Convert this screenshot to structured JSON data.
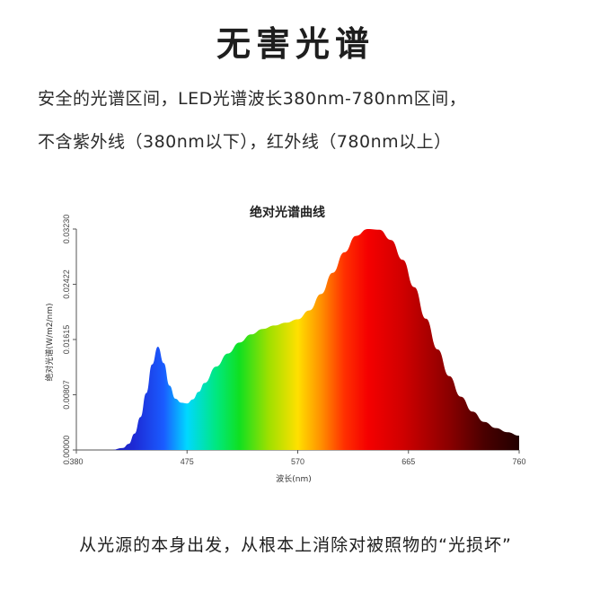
{
  "headline": "无害光谱",
  "description": {
    "line1": "安全的光谱区间，LED光谱波长380nm-780nm区间，",
    "line2": "不含紫外线（380nm以下），红外线（780nm以上）"
  },
  "footer": "从光源的本身出发，从根本上消除对被照物的“光损坏”",
  "chart_data": {
    "type": "area",
    "title": "绝对光谱曲线",
    "xlabel": "波长(nm)",
    "ylabel": "绝对光谱(W/m2/nm)",
    "xlim": [
      380,
      760
    ],
    "ylim": [
      0,
      0.0323
    ],
    "x_ticks": [
      "380",
      "475",
      "570",
      "665",
      "760"
    ],
    "y_ticks": [
      "0.00000",
      "0.00807",
      "0.01615",
      "0.02422",
      "0.03230"
    ],
    "x_tick_values": [
      380,
      475,
      570,
      665,
      760
    ],
    "y_tick_values": [
      0,
      0.00807,
      0.01615,
      0.02422,
      0.0323
    ],
    "fill": "spectral-gradient",
    "series": [
      {
        "x": [
          380,
          410,
          420,
          425,
          430,
          435,
          440,
          445,
          450,
          455,
          460,
          465,
          470,
          475,
          480,
          485,
          490,
          500,
          510,
          520,
          530,
          540,
          550,
          560,
          570,
          580,
          590,
          600,
          610,
          620,
          630,
          640,
          650,
          660,
          670,
          680,
          690,
          700,
          710,
          720,
          730,
          740,
          750,
          760
        ],
        "y": [
          0,
          0,
          0.0003,
          0.0009,
          0.0024,
          0.0048,
          0.0083,
          0.0125,
          0.0151,
          0.0127,
          0.0094,
          0.0075,
          0.0069,
          0.0068,
          0.0074,
          0.0085,
          0.0098,
          0.0122,
          0.0141,
          0.0157,
          0.0169,
          0.0177,
          0.0182,
          0.0186,
          0.0191,
          0.0204,
          0.0228,
          0.0259,
          0.0289,
          0.0313,
          0.0323,
          0.0322,
          0.0307,
          0.0278,
          0.0238,
          0.0192,
          0.0147,
          0.0108,
          0.0078,
          0.0056,
          0.0041,
          0.0032,
          0.0026,
          0.0021
        ]
      }
    ]
  }
}
